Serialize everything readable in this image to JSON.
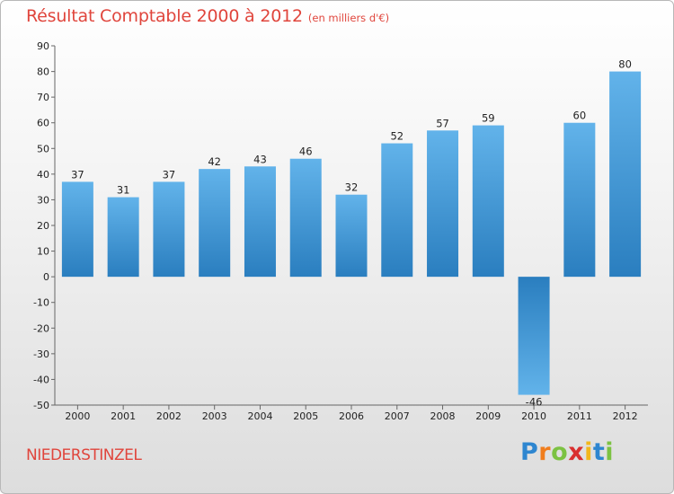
{
  "title": "Résultat Comptable 2000 à 2012",
  "subtitle": "(en milliers d'€)",
  "commune": "NIEDERSTINZEL",
  "logo": {
    "letters": [
      "P",
      "r",
      "o",
      "x",
      "i",
      "t",
      "i"
    ],
    "colors": [
      "#2e86d0",
      "#f07d1c",
      "#7cc242",
      "#d92f2f",
      "#f2b71c",
      "#2e86d0",
      "#7cc242"
    ]
  },
  "colors": {
    "title": "#e0453c",
    "bar_light": "#62b3ea",
    "bar_dark": "#2a7ebf"
  },
  "chart_data": {
    "type": "bar",
    "title": "Résultat Comptable 2000 à 2012",
    "xlabel": "",
    "ylabel": "",
    "categories": [
      "2000",
      "2001",
      "2002",
      "2003",
      "2004",
      "2005",
      "2006",
      "2007",
      "2008",
      "2009",
      "2010",
      "2011",
      "2012"
    ],
    "values": [
      37,
      31,
      37,
      42,
      43,
      46,
      32,
      52,
      57,
      59,
      -46,
      60,
      80
    ],
    "ylim": [
      -50,
      90
    ],
    "yticks": [
      90,
      80,
      70,
      60,
      50,
      40,
      30,
      20,
      10,
      0,
      -10,
      -20,
      -30,
      -40,
      -50
    ],
    "grid": false
  }
}
